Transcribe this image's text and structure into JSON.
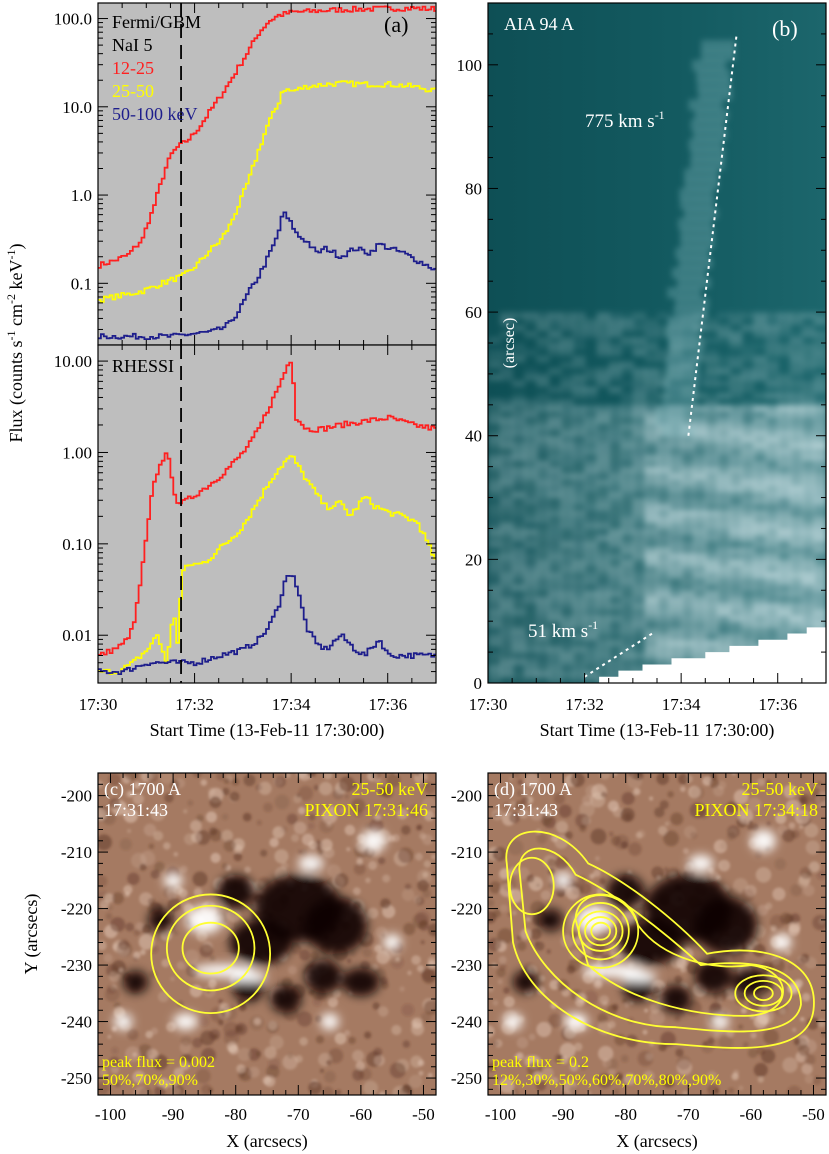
{
  "chart_data": [
    {
      "panel": "a-top",
      "type": "line",
      "label": "(a)",
      "instrument": "Fermi/GBM",
      "detector": "NaI 5",
      "yscale": "log",
      "ylim": [
        0.02,
        150
      ],
      "xlim": [
        0,
        7
      ],
      "ytick_labels": [
        "100.0",
        "10.0",
        "1.0",
        "0.1"
      ],
      "ytick_values": [
        100,
        10,
        1,
        0.1
      ],
      "colors": {
        "bg": "#bebebe",
        "red": "#ff2020",
        "yellow": "#ffff00",
        "blue": "#1e1e8c",
        "marker": "#000000"
      },
      "marker_x": 1.72,
      "series": [
        {
          "name": "12-25",
          "color": "#ff2020",
          "x": [
            0,
            0.3,
            0.6,
            0.9,
            1.0,
            1.1,
            1.2,
            1.3,
            1.4,
            1.5,
            1.6,
            1.72,
            1.9,
            2.1,
            2.3,
            2.5,
            2.7,
            2.9,
            3.1,
            3.3,
            3.5,
            3.7,
            4.0,
            4.5,
            5.0,
            5.5,
            6.0,
            6.5,
            7.0
          ],
          "y": [
            0.16,
            0.18,
            0.21,
            0.32,
            0.48,
            0.65,
            1.0,
            1.5,
            2.2,
            2.9,
            3.4,
            3.8,
            4.5,
            6.2,
            9,
            13,
            19,
            29,
            44,
            68,
            92,
            108,
            118,
            122,
            126,
            128,
            130,
            131,
            128
          ]
        },
        {
          "name": "25-50",
          "color": "#ffff00",
          "x": [
            0,
            0.3,
            0.6,
            0.9,
            1.1,
            1.3,
            1.5,
            1.72,
            1.9,
            2.1,
            2.3,
            2.5,
            2.7,
            2.9,
            3.1,
            3.3,
            3.5,
            3.7,
            3.8,
            4.0,
            4.3,
            4.7,
            5.0,
            5.5,
            6.0,
            6.5,
            7.0
          ],
          "y": [
            0.065,
            0.07,
            0.075,
            0.082,
            0.09,
            0.1,
            0.11,
            0.12,
            0.14,
            0.18,
            0.24,
            0.3,
            0.45,
            0.8,
            1.5,
            3.2,
            6.5,
            10.5,
            16,
            15,
            17,
            18,
            18.5,
            18,
            18,
            17,
            15
          ]
        },
        {
          "name": "50-100 keV",
          "color": "#1e1e8c",
          "x": [
            0,
            0.5,
            1.0,
            1.5,
            1.72,
            2.0,
            2.3,
            2.5,
            2.7,
            2.9,
            3.1,
            3.3,
            3.5,
            3.7,
            3.8,
            4.0,
            4.1,
            4.3,
            4.5,
            4.7,
            5.0,
            5.3,
            5.6,
            5.8,
            6.0,
            6.3,
            6.6,
            7.0
          ],
          "y": [
            0.025,
            0.025,
            0.025,
            0.025,
            0.026,
            0.027,
            0.028,
            0.03,
            0.035,
            0.05,
            0.08,
            0.12,
            0.2,
            0.35,
            0.65,
            0.45,
            0.35,
            0.3,
            0.22,
            0.25,
            0.2,
            0.25,
            0.22,
            0.28,
            0.25,
            0.22,
            0.18,
            0.14
          ]
        }
      ]
    },
    {
      "panel": "a-bottom",
      "type": "line",
      "instrument": "RHESSI",
      "yscale": "log",
      "ylim": [
        0.003,
        15
      ],
      "xlim": [
        0,
        7
      ],
      "ytick_labels": [
        "10.00",
        "1.00",
        "0.10",
        "0.01"
      ],
      "ytick_values": [
        10,
        1,
        0.1,
        0.01
      ],
      "marker_x": 1.72,
      "series": [
        {
          "name": "12-25",
          "color": "#ff2020",
          "x": [
            0,
            0.3,
            0.5,
            0.7,
            0.8,
            0.9,
            1.0,
            1.1,
            1.2,
            1.3,
            1.4,
            1.5,
            1.6,
            1.72,
            1.9,
            2.1,
            2.3,
            2.5,
            2.7,
            2.9,
            3.1,
            3.3,
            3.5,
            3.7,
            3.9,
            4.0,
            4.05,
            4.3,
            4.6,
            5.0,
            5.5,
            6.0,
            6.5,
            7.0
          ],
          "y": [
            0.006,
            0.007,
            0.008,
            0.012,
            0.025,
            0.06,
            0.15,
            0.38,
            0.6,
            0.8,
            1.1,
            0.5,
            0.3,
            0.28,
            0.32,
            0.38,
            0.45,
            0.55,
            0.7,
            0.9,
            1.2,
            1.8,
            3,
            5,
            9,
            11,
            2.5,
            1.8,
            1.8,
            2.0,
            2.2,
            2.4,
            2.0,
            1.8
          ]
        },
        {
          "name": "25-50",
          "color": "#ffff00",
          "x": [
            0,
            0.4,
            0.7,
            1.0,
            1.2,
            1.4,
            1.55,
            1.6,
            1.72,
            1.9,
            2.1,
            2.3,
            2.5,
            2.7,
            2.9,
            3.1,
            3.3,
            3.5,
            3.7,
            3.9,
            4.0,
            4.2,
            4.5,
            4.7,
            5.0,
            5.2,
            5.5,
            5.7,
            6.0,
            6.3,
            6.6,
            7.0
          ],
          "y": [
            0.004,
            0.004,
            0.005,
            0.007,
            0.01,
            0.005,
            0.02,
            0.006,
            0.05,
            0.06,
            0.06,
            0.07,
            0.09,
            0.11,
            0.14,
            0.2,
            0.3,
            0.45,
            0.65,
            0.85,
            0.9,
            0.6,
            0.35,
            0.25,
            0.28,
            0.2,
            0.33,
            0.26,
            0.22,
            0.2,
            0.17,
            0.06
          ]
        },
        {
          "name": "50-100 keV",
          "color": "#1e1e8c",
          "x": [
            0,
            0.5,
            1.0,
            1.5,
            1.72,
            2.0,
            2.5,
            3.0,
            3.3,
            3.5,
            3.7,
            3.85,
            4.0,
            4.15,
            4.3,
            4.5,
            4.7,
            5.0,
            5.3,
            5.5,
            5.8,
            6.0,
            6.5,
            7.0
          ],
          "y": [
            0.004,
            0.004,
            0.005,
            0.005,
            0.005,
            0.005,
            0.006,
            0.007,
            0.009,
            0.012,
            0.02,
            0.04,
            0.05,
            0.025,
            0.012,
            0.008,
            0.007,
            0.01,
            0.007,
            0.006,
            0.009,
            0.006,
            0.006,
            0.006
          ]
        }
      ]
    },
    {
      "panel": "b",
      "type": "heatmap",
      "label": "(b)",
      "title": "AIA 94 A",
      "ylabel": "(arcsec)",
      "xlabel": "Start Time (13-Feb-11 17:30:00)",
      "xlim": [
        0,
        7
      ],
      "ylim": [
        0,
        110
      ],
      "ytick_labels": [
        "0",
        "20",
        "40",
        "60",
        "80",
        "100"
      ],
      "ytick_values": [
        0,
        20,
        40,
        60,
        80,
        100
      ],
      "colors": {
        "dark": "#0e4a50",
        "mid": "#1f6e74",
        "bright": "#cde2e6",
        "line": "#ffffff"
      },
      "fits": [
        {
          "label": "775 km s",
          "superscript": "-1",
          "x": [
            4.15,
            5.15
          ],
          "y": [
            40,
            105
          ]
        },
        {
          "label": "51 km s",
          "superscript": "-1",
          "x": [
            2.0,
            3.4
          ],
          "y": [
            1,
            8
          ]
        }
      ]
    },
    {
      "panel": "c",
      "type": "heatmap",
      "title": "(c) 1700 A",
      "time": "17:31:43",
      "contour_band": "25-50 keV",
      "contour_method": "PIXON 17:31:46",
      "peak_flux": "peak flux = 0.002",
      "levels": "50%,70%,90%",
      "xlabel": "X (arcsecs)",
      "ylabel": "Y (arcsecs)",
      "xlim": [
        -102,
        -48
      ],
      "ylim": [
        -253,
        -196
      ],
      "xtick_labels": [
        "-100",
        "-90",
        "-80",
        "-70",
        "-60",
        "-50"
      ],
      "xtick_values": [
        -100,
        -90,
        -80,
        -70,
        -60,
        -50
      ],
      "ytick_labels": [
        "-200",
        "-210",
        "-220",
        "-230",
        "-240",
        "-250"
      ],
      "ytick_values": [
        -200,
        -210,
        -220,
        -230,
        -240,
        -250
      ],
      "contours": [
        {
          "level": 0.5,
          "cx": -84,
          "cy": -228,
          "rx": 9.5,
          "ry": 10.5
        },
        {
          "level": 0.7,
          "cx": -84,
          "cy": -227,
          "rx": 7,
          "ry": 7.5
        },
        {
          "level": 0.9,
          "cx": -84,
          "cy": -227,
          "rx": 4.5,
          "ry": 4.5
        }
      ]
    },
    {
      "panel": "d",
      "type": "heatmap",
      "title": "(d) 1700 A",
      "time": "17:31:43",
      "contour_band": "25-50 keV",
      "contour_method": "PIXON 17:34:18",
      "peak_flux": "peak flux = 0.2",
      "levels": "12%,30%,50%,60%,70%,80%,90%",
      "xlabel": "X (arcsecs)",
      "xlim": [
        -102,
        -48
      ],
      "ylim": [
        -253,
        -196
      ],
      "xtick_labels": [
        "-100",
        "-90",
        "-80",
        "-70",
        "-60",
        "-50"
      ],
      "xtick_values": [
        -100,
        -90,
        -80,
        -70,
        -60,
        -50
      ],
      "ytick_labels": [
        "-200",
        "-210",
        "-220",
        "-230",
        "-240",
        "-250"
      ],
      "ytick_values": [
        -200,
        -210,
        -220,
        -230,
        -240,
        -250
      ],
      "sources": [
        {
          "cx": -95,
          "cy": -216,
          "rx": [
            3.5
          ],
          "ry": [
            5
          ]
        },
        {
          "cx": -84,
          "cy": -224,
          "rx": [
            1.5,
            2.5,
            3.5,
            4.5,
            6
          ],
          "ry": [
            1.5,
            2.5,
            3.5,
            5,
            6.5
          ]
        },
        {
          "cx": -58,
          "cy": -235,
          "rx": [
            1.5,
            3,
            4.5
          ],
          "ry": [
            1.2,
            2.2,
            3.2
          ]
        }
      ]
    }
  ],
  "shared": {
    "time_tick_labels": [
      "17:30",
      "17:32",
      "17:34",
      "17:36"
    ],
    "time_tick_values": [
      0,
      2,
      4,
      6
    ],
    "xlabel_a": "Start Time (13-Feb-11 17:30:00)",
    "ylabel_a": "Flux (counts s",
    "ylabel_a_sup1": "-1",
    "ylabel_a_mid1": " cm",
    "ylabel_a_sup2": "-2",
    "ylabel_a_mid2": " keV",
    "ylabel_a_sup3": "-1",
    "ylabel_a_end": ")"
  }
}
